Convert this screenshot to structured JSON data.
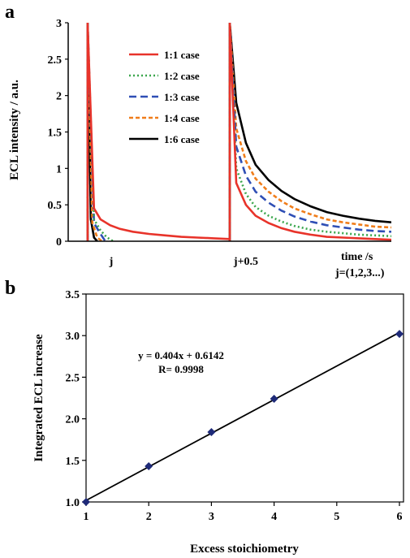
{
  "panels": {
    "a": "a",
    "b": "b"
  },
  "chart_data": [
    {
      "type": "line",
      "ylabel": "ECL intensity / a.u.",
      "xlabel": "time /s",
      "x_note": "j=(1,2,3...)",
      "x_ticks": [
        "j",
        "j+0.5"
      ],
      "x_range": [
        0,
        1
      ],
      "y_ticks": [
        "0",
        "0.5",
        "1",
        "1.5",
        "2",
        "2.5",
        "3"
      ],
      "ylim": [
        0,
        3
      ],
      "legend_position": "top-center",
      "grid": false,
      "series": [
        {
          "name": "1:1 case",
          "color": "#e8332a",
          "dash": "solid",
          "x": [
            0.06,
            0.08,
            0.1,
            0.13,
            0.16,
            0.2,
            0.25,
            0.3,
            0.35,
            0.4,
            0.45,
            0.5
          ],
          "y": [
            3.0,
            0.45,
            0.3,
            0.22,
            0.17,
            0.13,
            0.1,
            0.08,
            0.06,
            0.05,
            0.04,
            0.03
          ],
          "x2": [
            0.5,
            0.52,
            0.55,
            0.58,
            0.62,
            0.66,
            0.7,
            0.75,
            0.8,
            0.85,
            0.9,
            0.95,
            1.0
          ],
          "y2": [
            3.0,
            0.8,
            0.5,
            0.35,
            0.25,
            0.18,
            0.13,
            0.09,
            0.06,
            0.05,
            0.04,
            0.03,
            0.02
          ]
        },
        {
          "name": "1:2 case",
          "color": "#3aa64c",
          "dash": "dot",
          "x": [
            0.06,
            0.08,
            0.1,
            0.12,
            0.14
          ],
          "y": [
            3.0,
            0.3,
            0.15,
            0.05,
            0.0
          ],
          "x2": [
            0.5,
            0.52,
            0.55,
            0.58,
            0.62,
            0.66,
            0.7,
            0.75,
            0.8,
            0.85,
            0.9,
            0.95,
            1.0
          ],
          "y2": [
            3.0,
            1.0,
            0.65,
            0.47,
            0.35,
            0.27,
            0.21,
            0.16,
            0.13,
            0.11,
            0.09,
            0.08,
            0.07
          ]
        },
        {
          "name": "1:3 case",
          "color": "#2f4fb5",
          "dash": "dash",
          "x": [
            0.06,
            0.08,
            0.1,
            0.115
          ],
          "y": [
            3.0,
            0.25,
            0.1,
            0.0
          ],
          "x2": [
            0.5,
            0.52,
            0.55,
            0.58,
            0.62,
            0.66,
            0.7,
            0.75,
            0.8,
            0.85,
            0.9,
            0.95,
            1.0
          ],
          "y2": [
            3.0,
            1.3,
            0.9,
            0.68,
            0.53,
            0.42,
            0.34,
            0.27,
            0.22,
            0.19,
            0.16,
            0.14,
            0.13
          ]
        },
        {
          "name": "1:4 case",
          "color": "#f07d1a",
          "dash": "shortdash",
          "x": [
            0.06,
            0.075,
            0.09,
            0.105
          ],
          "y": [
            3.0,
            0.25,
            0.05,
            0.0
          ],
          "x2": [
            0.5,
            0.52,
            0.55,
            0.58,
            0.62,
            0.66,
            0.7,
            0.75,
            0.8,
            0.85,
            0.9,
            0.95,
            1.0
          ],
          "y2": [
            3.0,
            1.55,
            1.1,
            0.86,
            0.68,
            0.55,
            0.45,
            0.37,
            0.3,
            0.26,
            0.23,
            0.2,
            0.19
          ]
        },
        {
          "name": "1:6 case",
          "color": "#000000",
          "dash": "solid",
          "x": [
            0.06,
            0.07,
            0.08,
            0.09
          ],
          "y": [
            3.0,
            0.3,
            0.05,
            0.0
          ],
          "x2": [
            0.5,
            0.52,
            0.55,
            0.58,
            0.62,
            0.66,
            0.7,
            0.75,
            0.8,
            0.85,
            0.9,
            0.95,
            1.0
          ],
          "y2": [
            3.0,
            1.9,
            1.35,
            1.05,
            0.84,
            0.69,
            0.58,
            0.48,
            0.4,
            0.35,
            0.31,
            0.28,
            0.26
          ]
        }
      ]
    },
    {
      "type": "scatter",
      "xlabel": "Excess stoichiometry",
      "ylabel": "Integrated ECL increase",
      "xlim": [
        1,
        6
      ],
      "ylim": [
        1.0,
        3.5
      ],
      "x_ticks": [
        "1",
        "2",
        "3",
        "4",
        "5",
        "6"
      ],
      "y_ticks": [
        "1.0",
        "1.5",
        "2.0",
        "2.5",
        "3.0",
        "3.5"
      ],
      "grid": false,
      "points": {
        "x": [
          1,
          2,
          3,
          4,
          6
        ],
        "y": [
          1.0,
          1.43,
          1.84,
          2.24,
          3.02
        ]
      },
      "points_color": "#1e2a78",
      "fit": {
        "slope": 0.404,
        "intercept": 0.6142,
        "color": "#000000"
      },
      "annotations": [
        "y = 0.404x + 0.6142",
        "R= 0.9998"
      ]
    }
  ]
}
